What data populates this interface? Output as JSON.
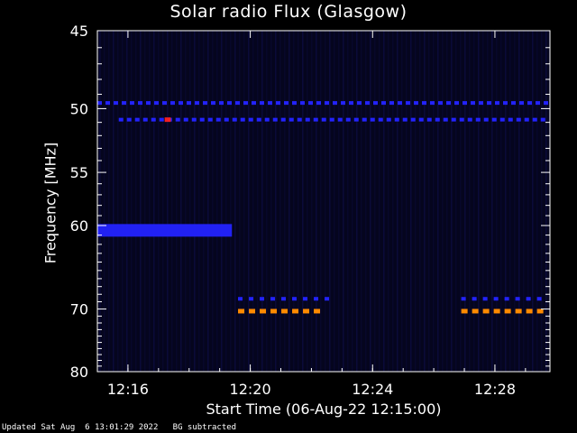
{
  "chart_data": {
    "type": "heatmap",
    "title": "Solar radio Flux (Glasgow)",
    "xlabel": "Start Time (06-Aug-22 12:15:00)",
    "ylabel": "Frequency [MHz]",
    "x_ticks": [
      "12:16",
      "12:20",
      "12:24",
      "12:28"
    ],
    "x_tick_minutes": [
      1,
      5,
      9,
      13
    ],
    "xlim_minutes": [
      0,
      14.8
    ],
    "y_ticks": [
      45,
      50,
      55,
      60,
      70,
      80
    ],
    "ylim": [
      45,
      80
    ],
    "y_scale": "reciprocal",
    "colormap": [
      "#000010",
      "#0a0a5a",
      "#2323ff",
      "#ff2020",
      "#ff8a00"
    ],
    "background_color": "#05051e",
    "features": [
      {
        "freq": 49.6,
        "t_start": 0.0,
        "t_end": 14.8,
        "intensity": 0.55,
        "pattern": "dashed"
      },
      {
        "freq": 50.8,
        "t_start": 0.7,
        "t_end": 14.8,
        "intensity": 0.6,
        "pattern": "dashed"
      },
      {
        "freq": 50.8,
        "t_start": 2.2,
        "t_end": 2.4,
        "intensity": 0.9,
        "pattern": "solid"
      },
      {
        "freq": 60.5,
        "t_start": 0.0,
        "t_end": 4.4,
        "intensity": 0.7,
        "pattern": "solid"
      },
      {
        "freq": 68.6,
        "t_start": 4.6,
        "t_end": 7.6,
        "intensity": 0.6,
        "pattern": "dashed"
      },
      {
        "freq": 68.6,
        "t_start": 11.9,
        "t_end": 14.8,
        "intensity": 0.6,
        "pattern": "dashed"
      },
      {
        "freq": 70.3,
        "t_start": 4.6,
        "t_end": 7.6,
        "intensity": 1.0,
        "pattern": "dashed"
      },
      {
        "freq": 70.3,
        "t_start": 11.9,
        "t_end": 14.8,
        "intensity": 1.0,
        "pattern": "dashed"
      }
    ]
  },
  "footer": "Updated Sat Aug  6 13:01:29 2022   BG subtracted"
}
